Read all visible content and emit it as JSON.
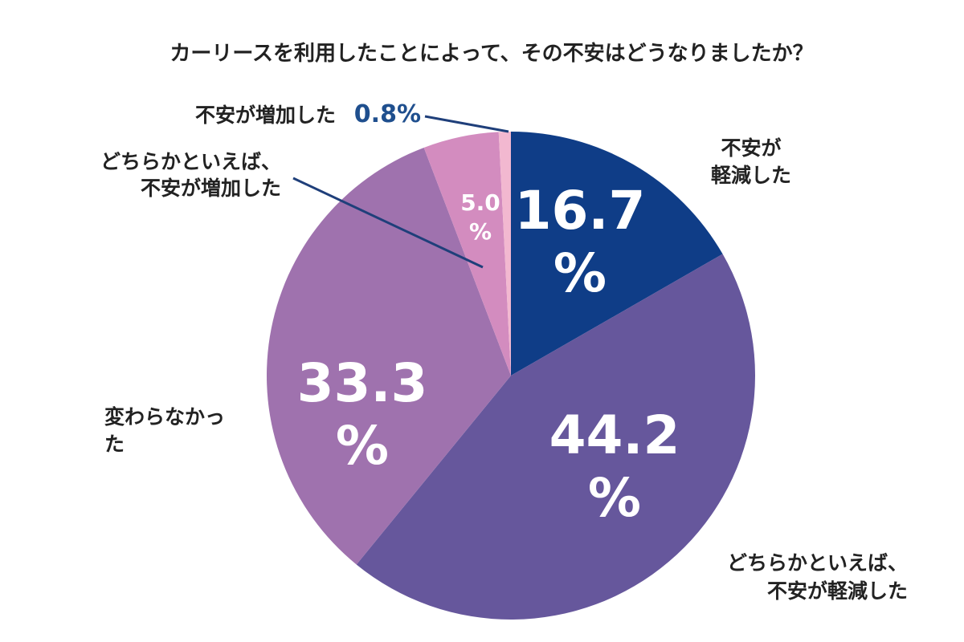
{
  "chart_data": {
    "type": "pie",
    "title": "カーリースを利用したことによって、その不安はどうなりましたか？",
    "unit": "%",
    "start_angle_deg": 0,
    "direction": "clockwise",
    "legend": "none (labels placed beside slices)",
    "slices": [
      {
        "label_lines": [
          "不安が",
          "軽減した"
        ],
        "value": 16.7,
        "value_lines": [
          "16.7",
          "%"
        ],
        "color": "#0f3d87"
      },
      {
        "label_lines": [
          "どちらかといえば、",
          "不安が軽減した"
        ],
        "value": 44.2,
        "value_lines": [
          "44.2",
          "%"
        ],
        "color": "#66579c"
      },
      {
        "label_lines": [
          "変わらなかっ",
          "た"
        ],
        "value": 33.3,
        "value_lines": [
          "33.3",
          "%"
        ],
        "color": "#9f72ae"
      },
      {
        "label_lines": [
          "どちらかといえば、",
          "不安が増加した"
        ],
        "value": 5.0,
        "value_lines": [
          "5.0",
          "%"
        ],
        "color": "#d38cbf"
      },
      {
        "label_lines": [
          "不安が増加した"
        ],
        "value": 0.8,
        "value_lines": [
          "0.8%"
        ],
        "color": "#f2b8d0"
      }
    ],
    "colors": {
      "outside_value_text": "#1f4f8e",
      "leader_line": "#1f3f7a",
      "label_text": "#222222"
    }
  }
}
